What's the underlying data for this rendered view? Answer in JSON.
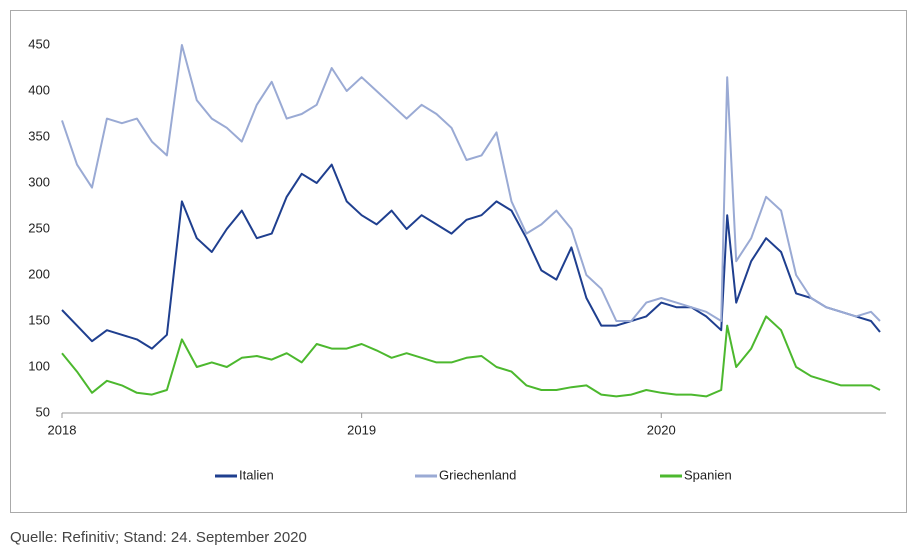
{
  "chart_data": {
    "type": "line",
    "source": "Quelle: Refinitiv; Stand: 24. September 2020",
    "x": [
      2018.0,
      2018.05,
      2018.1,
      2018.15,
      2018.2,
      2018.25,
      2018.3,
      2018.35,
      2018.4,
      2018.45,
      2018.5,
      2018.55,
      2018.6,
      2018.65,
      2018.7,
      2018.75,
      2018.8,
      2018.85,
      2018.9,
      2018.95,
      2019.0,
      2019.05,
      2019.1,
      2019.15,
      2019.2,
      2019.25,
      2019.3,
      2019.35,
      2019.4,
      2019.45,
      2019.5,
      2019.55,
      2019.6,
      2019.65,
      2019.7,
      2019.75,
      2019.8,
      2019.85,
      2019.9,
      2019.95,
      2020.0,
      2020.05,
      2020.1,
      2020.15,
      2020.2,
      2020.22,
      2020.25,
      2020.3,
      2020.35,
      2020.4,
      2020.45,
      2020.5,
      2020.55,
      2020.6,
      2020.65,
      2020.7,
      2020.73
    ],
    "series": [
      {
        "name": "Italien",
        "color": "#1f3f8f",
        "values": [
          162,
          145,
          128,
          140,
          135,
          130,
          120,
          135,
          280,
          240,
          225,
          250,
          270,
          240,
          245,
          285,
          310,
          300,
          320,
          280,
          265,
          255,
          270,
          250,
          265,
          255,
          245,
          260,
          265,
          280,
          270,
          240,
          205,
          195,
          230,
          175,
          145,
          145,
          150,
          155,
          170,
          165,
          165,
          155,
          140,
          265,
          170,
          215,
          240,
          225,
          180,
          175,
          165,
          160,
          155,
          150,
          138
        ]
      },
      {
        "name": "Griechenland",
        "color": "#9aaad4",
        "values": [
          368,
          320,
          295,
          370,
          365,
          370,
          345,
          330,
          450,
          390,
          370,
          360,
          345,
          385,
          410,
          370,
          375,
          385,
          425,
          400,
          415,
          400,
          385,
          370,
          385,
          375,
          360,
          325,
          330,
          355,
          280,
          245,
          255,
          270,
          250,
          200,
          185,
          150,
          150,
          170,
          175,
          170,
          165,
          160,
          150,
          415,
          215,
          240,
          285,
          270,
          200,
          175,
          165,
          160,
          155,
          160,
          150
        ]
      },
      {
        "name": "Spanien",
        "color": "#4cb82e",
        "values": [
          115,
          95,
          72,
          85,
          80,
          72,
          70,
          75,
          130,
          100,
          105,
          100,
          110,
          112,
          108,
          115,
          105,
          125,
          120,
          120,
          125,
          118,
          110,
          115,
          110,
          105,
          105,
          110,
          112,
          100,
          95,
          80,
          75,
          75,
          78,
          80,
          70,
          68,
          70,
          75,
          72,
          70,
          70,
          68,
          75,
          145,
          100,
          120,
          155,
          140,
          100,
          90,
          85,
          80,
          80,
          80,
          75
        ]
      }
    ],
    "xlim": [
      2018,
      2020.75
    ],
    "xticks": [
      2018,
      2019,
      2020
    ],
    "ylim": [
      50,
      450
    ],
    "yticks": [
      50,
      100,
      150,
      200,
      250,
      300,
      350,
      400,
      450
    ],
    "grid": false
  }
}
